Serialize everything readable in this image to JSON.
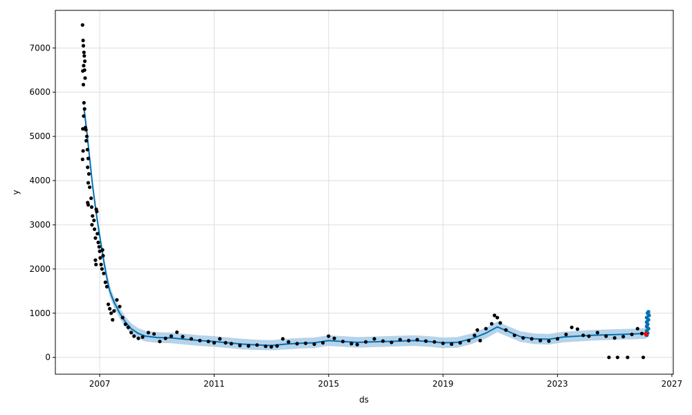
{
  "chart_data": {
    "type": "scatter",
    "xlabel": "ds",
    "ylabel": "y",
    "xlim": [
      2005.45,
      2027.05
    ],
    "ylim": [
      -380,
      7850
    ],
    "x_ticks": [
      2007,
      2011,
      2015,
      2019,
      2023,
      2027
    ],
    "x_tick_labels": [
      "2007",
      "2011",
      "2015",
      "2019",
      "2023",
      "2027"
    ],
    "y_ticks": [
      0,
      1000,
      2000,
      3000,
      4000,
      5000,
      6000,
      7000
    ],
    "y_tick_labels": [
      "0",
      "1000",
      "2000",
      "3000",
      "4000",
      "5000",
      "6000",
      "7000"
    ],
    "grid": true,
    "colors": {
      "observed": "#000000",
      "forecast_line": "#0072B2",
      "uncertainty_band": "#9ec4e3",
      "forecast_dots": "#0072B2",
      "last_point": "#ff0000"
    },
    "series": [
      {
        "key": "forecast",
        "points": [
          [
            2006.45,
            5650
          ],
          [
            2006.55,
            5100
          ],
          [
            2006.65,
            4500
          ],
          [
            2006.75,
            3900
          ],
          [
            2006.85,
            3400
          ],
          [
            2006.95,
            2950
          ],
          [
            2007.05,
            2550
          ],
          [
            2007.15,
            2150
          ],
          [
            2007.25,
            1800
          ],
          [
            2007.35,
            1500
          ],
          [
            2007.5,
            1250
          ],
          [
            2007.7,
            1000
          ],
          [
            2007.9,
            800
          ],
          [
            2008.1,
            650
          ],
          [
            2008.35,
            540
          ],
          [
            2008.6,
            480
          ],
          [
            2009.0,
            450
          ],
          [
            2009.5,
            440
          ],
          [
            2010.0,
            410
          ],
          [
            2010.5,
            380
          ],
          [
            2011.0,
            360
          ],
          [
            2011.5,
            330
          ],
          [
            2012.0,
            300
          ],
          [
            2012.5,
            280
          ],
          [
            2013.0,
            270
          ],
          [
            2013.5,
            300
          ],
          [
            2014.0,
            320
          ],
          [
            2014.5,
            330
          ],
          [
            2015.0,
            380
          ],
          [
            2015.5,
            360
          ],
          [
            2016.0,
            340
          ],
          [
            2016.5,
            350
          ],
          [
            2017.0,
            360
          ],
          [
            2017.5,
            370
          ],
          [
            2018.0,
            380
          ],
          [
            2018.5,
            360
          ],
          [
            2019.0,
            330
          ],
          [
            2019.5,
            340
          ],
          [
            2020.0,
            420
          ],
          [
            2020.5,
            550
          ],
          [
            2020.9,
            690
          ],
          [
            2021.3,
            580
          ],
          [
            2021.7,
            470
          ],
          [
            2022.2,
            420
          ],
          [
            2022.7,
            410
          ],
          [
            2023.2,
            460
          ],
          [
            2023.7,
            480
          ],
          [
            2024.2,
            500
          ],
          [
            2024.7,
            510
          ],
          [
            2025.2,
            520
          ],
          [
            2025.7,
            530
          ],
          [
            2026.1,
            545
          ]
        ],
        "band_half_width": 120
      },
      {
        "key": "observed_black",
        "points": [
          [
            2006.4,
            7520
          ],
          [
            2006.42,
            7170
          ],
          [
            2006.43,
            7050
          ],
          [
            2006.45,
            6900
          ],
          [
            2006.46,
            6820
          ],
          [
            2006.48,
            6700
          ],
          [
            2006.44,
            6600
          ],
          [
            2006.47,
            6500
          ],
          [
            2006.41,
            6480
          ],
          [
            2006.49,
            6320
          ],
          [
            2006.43,
            6170
          ],
          [
            2006.45,
            5760
          ],
          [
            2006.47,
            5620
          ],
          [
            2006.44,
            5460
          ],
          [
            2006.5,
            5200
          ],
          [
            2006.52,
            5150
          ],
          [
            2006.41,
            5170
          ],
          [
            2006.55,
            5000
          ],
          [
            2006.53,
            4900
          ],
          [
            2006.57,
            4700
          ],
          [
            2006.42,
            4670
          ],
          [
            2006.4,
            4480
          ],
          [
            2006.6,
            4500
          ],
          [
            2006.58,
            4300
          ],
          [
            2006.62,
            4150
          ],
          [
            2006.6,
            3950
          ],
          [
            2006.65,
            3850
          ],
          [
            2006.58,
            3500
          ],
          [
            2006.6,
            3450
          ],
          [
            2006.7,
            3600
          ],
          [
            2006.72,
            3400
          ],
          [
            2006.75,
            3200
          ],
          [
            2006.73,
            3000
          ],
          [
            2006.8,
            3100
          ],
          [
            2006.82,
            2900
          ],
          [
            2006.85,
            2700
          ],
          [
            2006.88,
            3350
          ],
          [
            2006.9,
            3300
          ],
          [
            2006.92,
            2800
          ],
          [
            2006.95,
            2600
          ],
          [
            2006.98,
            2500
          ],
          [
            2007.0,
            2400
          ],
          [
            2007.02,
            2250
          ],
          [
            2006.85,
            2200
          ],
          [
            2006.87,
            2100
          ],
          [
            2007.05,
            2100
          ],
          [
            2007.08,
            2000
          ],
          [
            2007.1,
            2430
          ],
          [
            2007.12,
            2300
          ],
          [
            2007.14,
            1900
          ],
          [
            2007.2,
            1700
          ],
          [
            2007.25,
            1600
          ],
          [
            2007.3,
            1200
          ],
          [
            2007.35,
            1100
          ],
          [
            2007.4,
            1000
          ],
          [
            2007.45,
            850
          ],
          [
            2007.5,
            1050
          ],
          [
            2007.6,
            1300
          ],
          [
            2007.7,
            1150
          ],
          [
            2007.8,
            900
          ],
          [
            2007.9,
            750
          ],
          [
            2008.0,
            680
          ],
          [
            2008.1,
            560
          ],
          [
            2008.2,
            480
          ],
          [
            2008.35,
            430
          ],
          [
            2008.5,
            460
          ],
          [
            2008.7,
            560
          ],
          [
            2008.9,
            530
          ],
          [
            2009.1,
            360
          ],
          [
            2009.3,
            430
          ],
          [
            2009.5,
            480
          ],
          [
            2009.7,
            570
          ],
          [
            2009.9,
            470
          ],
          [
            2010.2,
            420
          ],
          [
            2010.5,
            380
          ],
          [
            2010.8,
            360
          ],
          [
            2011.0,
            330
          ],
          [
            2011.2,
            420
          ],
          [
            2011.4,
            330
          ],
          [
            2011.6,
            310
          ],
          [
            2011.9,
            270
          ],
          [
            2012.2,
            260
          ],
          [
            2012.5,
            280
          ],
          [
            2012.8,
            250
          ],
          [
            2013.0,
            240
          ],
          [
            2013.2,
            260
          ],
          [
            2013.4,
            420
          ],
          [
            2013.6,
            350
          ],
          [
            2013.9,
            310
          ],
          [
            2014.2,
            320
          ],
          [
            2014.5,
            300
          ],
          [
            2014.8,
            330
          ],
          [
            2015.0,
            480
          ],
          [
            2015.2,
            430
          ],
          [
            2015.5,
            360
          ],
          [
            2015.8,
            310
          ],
          [
            2016.0,
            290
          ],
          [
            2016.3,
            350
          ],
          [
            2016.6,
            420
          ],
          [
            2016.9,
            370
          ],
          [
            2017.2,
            340
          ],
          [
            2017.5,
            400
          ],
          [
            2017.8,
            380
          ],
          [
            2018.1,
            400
          ],
          [
            2018.4,
            370
          ],
          [
            2018.7,
            350
          ],
          [
            2019.0,
            320
          ],
          [
            2019.3,
            300
          ],
          [
            2019.6,
            330
          ],
          [
            2019.9,
            380
          ],
          [
            2020.1,
            500
          ],
          [
            2020.2,
            620
          ],
          [
            2020.3,
            380
          ],
          [
            2020.5,
            650
          ],
          [
            2020.7,
            760
          ],
          [
            2020.8,
            950
          ],
          [
            2020.9,
            900
          ],
          [
            2021.0,
            780
          ],
          [
            2021.2,
            620
          ],
          [
            2021.5,
            500
          ],
          [
            2021.8,
            440
          ],
          [
            2022.1,
            420
          ],
          [
            2022.4,
            380
          ],
          [
            2022.7,
            370
          ],
          [
            2023.0,
            420
          ],
          [
            2023.3,
            520
          ],
          [
            2023.5,
            680
          ],
          [
            2023.7,
            640
          ],
          [
            2023.9,
            500
          ],
          [
            2024.1,
            480
          ],
          [
            2024.4,
            560
          ],
          [
            2024.7,
            480
          ],
          [
            2025.0,
            440
          ],
          [
            2025.3,
            470
          ],
          [
            2025.6,
            520
          ],
          [
            2025.8,
            650
          ],
          [
            2025.95,
            540
          ],
          [
            2024.8,
            0
          ],
          [
            2025.1,
            0
          ],
          [
            2025.45,
            0
          ],
          [
            2026.0,
            0
          ]
        ]
      },
      {
        "key": "forecast_blue_dots",
        "points": [
          [
            2026.12,
            500
          ],
          [
            2026.12,
            600
          ],
          [
            2026.12,
            700
          ],
          [
            2026.12,
            800
          ],
          [
            2026.12,
            900
          ],
          [
            2026.15,
            1000
          ],
          [
            2026.15,
            550
          ],
          [
            2026.15,
            750
          ],
          [
            2026.18,
            650
          ],
          [
            2026.18,
            850
          ],
          [
            2026.18,
            1030
          ],
          [
            2026.2,
            950
          ]
        ]
      },
      {
        "key": "last_point_red",
        "points": [
          [
            2026.1,
            530
          ]
        ]
      }
    ]
  }
}
